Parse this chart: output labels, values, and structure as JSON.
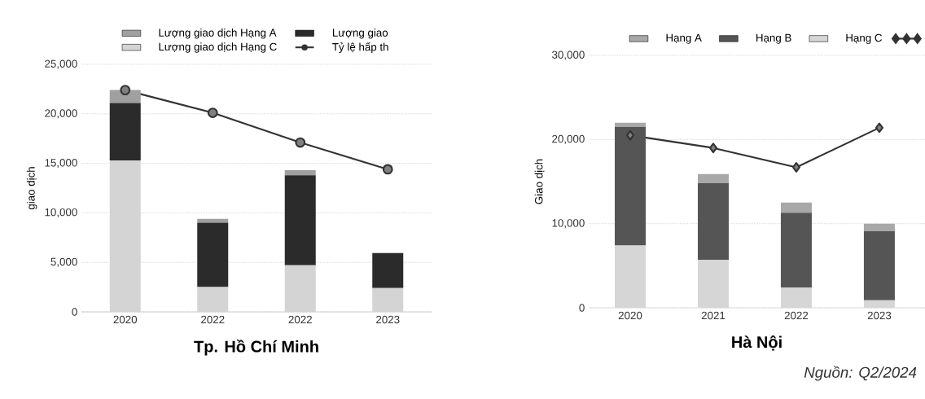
{
  "chart_data": [
    {
      "type": "bar",
      "title": "Tp. Hồ Chí Minh",
      "ylabel": "giao dịch",
      "categories": [
        "2020",
        "2022",
        "2022",
        "2023"
      ],
      "stacked": true,
      "legend": "top",
      "grid": "y",
      "line_style": "solid",
      "ylim": [
        0,
        25000
      ],
      "yticks": [
        0,
        {
          "value": 5000,
          "label": "5,000"
        },
        {
          "value": 10000,
          "label": "10,000"
        },
        {
          "value": 15000,
          "label": "15,000"
        },
        {
          "value": 20000,
          "label": "20,000"
        },
        {
          "value": 25000,
          "label": "25,000"
        }
      ],
      "series": [
        {
          "name": "Lượng giao dịch Hạng C",
          "type": "bar",
          "color": "#d4d4d4",
          "values": [
            15300,
            2500,
            4700,
            2400
          ]
        },
        {
          "name": "Lượng giao",
          "type": "bar",
          "color": "#2b2b2b",
          "values": [
            5800,
            6500,
            9100,
            3550
          ]
        },
        {
          "name": "Lượng giao dịch Hạng A",
          "type": "bar",
          "color": "#a0a0a0",
          "values": [
            1300,
            400,
            500,
            0
          ]
        },
        {
          "name": "Tỷ lệ hấp th",
          "type": "line",
          "color": "#333333",
          "marker": "circle",
          "values": [
            22400,
            20100,
            17100,
            14400
          ]
        }
      ]
    },
    {
      "type": "bar",
      "title": "Hà Nội",
      "ylabel": "Giao dịch",
      "categories": [
        "2020",
        "2021",
        "2022",
        "2023"
      ],
      "stacked": true,
      "legend": "top",
      "grid": "y",
      "line_style": "solid",
      "ylim": [
        0,
        30000
      ],
      "yticks": [
        0,
        {
          "value": 10000,
          "label": "10,000"
        },
        {
          "value": 20000,
          "label": "20,000"
        },
        {
          "value": 30000,
          "label": "30,000"
        }
      ],
      "annotations": [
        "Nguồn: Q2/2024"
      ],
      "series": [
        {
          "name": "Hạng C",
          "type": "bar",
          "color": "#d6d6d6",
          "values": [
            7400,
            5700,
            2400,
            900
          ]
        },
        {
          "name": "Hạng B",
          "type": "bar",
          "color": "#555555",
          "values": [
            14100,
            9100,
            8900,
            8200
          ]
        },
        {
          "name": "Hạng A",
          "type": "bar",
          "color": "#a8a8a8",
          "values": [
            500,
            1100,
            1200,
            900
          ]
        },
        {
          "type": "line",
          "color": "#333333",
          "marker": "diamond",
          "values": [
            20500,
            19000,
            16700,
            21400
          ]
        }
      ]
    }
  ]
}
